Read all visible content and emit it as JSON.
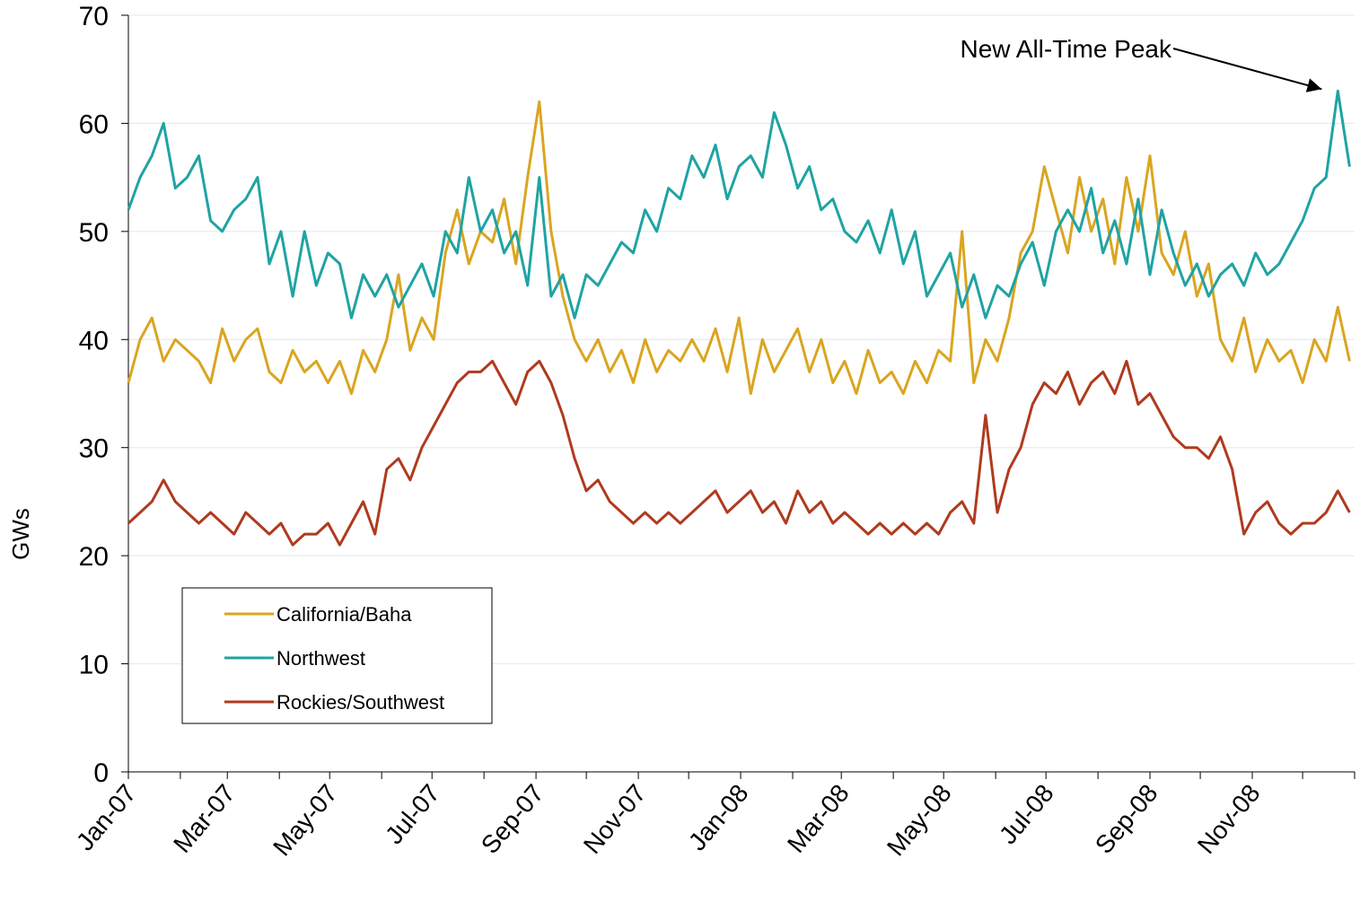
{
  "chart_data": {
    "type": "line",
    "ylabel": "GWs",
    "annotation": "New All-Time Peak",
    "x": [
      0,
      7,
      14,
      21,
      28,
      35,
      42,
      49,
      56,
      63,
      70,
      77,
      84,
      91,
      98,
      105,
      112,
      119,
      126,
      133,
      140,
      147,
      154,
      161,
      168,
      175,
      182,
      189,
      196,
      203,
      210,
      217,
      224,
      231,
      238,
      245,
      252,
      259,
      266,
      273,
      280,
      287,
      294,
      301,
      308,
      315,
      322,
      329,
      336,
      343,
      350,
      357,
      364,
      371,
      378,
      385,
      392,
      399,
      406,
      413,
      420,
      427,
      434,
      441,
      448,
      455,
      462,
      469,
      476,
      483,
      490,
      497,
      504,
      511,
      518,
      525,
      532,
      539,
      546,
      553,
      560,
      567,
      574,
      581,
      588,
      595,
      602,
      609,
      616,
      623,
      630,
      637,
      644,
      651,
      658,
      665,
      672,
      679,
      686,
      693,
      700,
      707,
      714,
      721,
      728
    ],
    "series": [
      {
        "name": "California/Baha",
        "color": "#DAA520",
        "values": [
          36,
          40,
          42,
          38,
          40,
          39,
          38,
          36,
          41,
          38,
          40,
          41,
          37,
          36,
          39,
          37,
          38,
          36,
          38,
          35,
          39,
          37,
          40,
          46,
          39,
          42,
          40,
          48,
          52,
          47,
          50,
          49,
          53,
          47,
          55,
          62,
          50,
          44,
          40,
          38,
          40,
          37,
          39,
          36,
          40,
          37,
          39,
          38,
          40,
          38,
          41,
          37,
          42,
          35,
          40,
          37,
          39,
          41,
          37,
          40,
          36,
          38,
          35,
          39,
          36,
          37,
          35,
          38,
          36,
          39,
          38,
          50,
          36,
          40,
          38,
          42,
          48,
          50,
          56,
          52,
          48,
          55,
          50,
          53,
          47,
          55,
          50,
          57,
          48,
          46,
          50,
          44,
          47,
          40,
          38,
          42,
          37,
          40,
          38,
          39,
          36,
          40,
          38,
          43,
          38
        ]
      },
      {
        "name": "Northwest",
        "color": "#20A3A3",
        "values": [
          52,
          55,
          57,
          60,
          54,
          55,
          57,
          51,
          50,
          52,
          53,
          55,
          47,
          50,
          44,
          50,
          45,
          48,
          47,
          42,
          46,
          44,
          46,
          43,
          45,
          47,
          44,
          50,
          48,
          55,
          50,
          52,
          48,
          50,
          45,
          55,
          44,
          46,
          42,
          46,
          45,
          47,
          49,
          48,
          52,
          50,
          54,
          53,
          57,
          55,
          58,
          53,
          56,
          57,
          55,
          61,
          58,
          54,
          56,
          52,
          53,
          50,
          49,
          51,
          48,
          52,
          47,
          50,
          44,
          46,
          48,
          43,
          46,
          42,
          45,
          44,
          47,
          49,
          45,
          50,
          52,
          50,
          54,
          48,
          51,
          47,
          53,
          46,
          52,
          48,
          45,
          47,
          44,
          46,
          47,
          45,
          48,
          46,
          47,
          49,
          51,
          54,
          55,
          63,
          56
        ]
      },
      {
        "name": "Rockies/Southwest",
        "color": "#B03A1E",
        "values": [
          23,
          24,
          25,
          27,
          25,
          24,
          23,
          24,
          23,
          22,
          24,
          23,
          22,
          23,
          21,
          22,
          22,
          23,
          21,
          23,
          25,
          22,
          28,
          29,
          27,
          30,
          32,
          34,
          36,
          37,
          37,
          38,
          36,
          34,
          37,
          38,
          36,
          33,
          29,
          26,
          27,
          25,
          24,
          23,
          24,
          23,
          24,
          23,
          24,
          25,
          26,
          24,
          25,
          26,
          24,
          25,
          23,
          26,
          24,
          25,
          23,
          24,
          23,
          22,
          23,
          22,
          23,
          22,
          23,
          22,
          24,
          25,
          23,
          33,
          24,
          28,
          30,
          34,
          36,
          35,
          37,
          34,
          36,
          37,
          35,
          38,
          34,
          35,
          33,
          31,
          30,
          30,
          29,
          31,
          28,
          22,
          24,
          25,
          23,
          22,
          23,
          23,
          24,
          26,
          24
        ]
      }
    ],
    "xlim": [
      0,
      731
    ],
    "xticks": [
      {
        "value": 0,
        "label": "Jan-07"
      },
      {
        "value": 59,
        "label": "Mar-07"
      },
      {
        "value": 120,
        "label": "May-07"
      },
      {
        "value": 181,
        "label": "Jul-07"
      },
      {
        "value": 243,
        "label": "Sep-07"
      },
      {
        "value": 304,
        "label": "Nov-07"
      },
      {
        "value": 365,
        "label": "Jan-08"
      },
      {
        "value": 425,
        "label": "Mar-08"
      },
      {
        "value": 486,
        "label": "May-08"
      },
      {
        "value": 547,
        "label": "Jul-08"
      },
      {
        "value": 609,
        "label": "Sep-08"
      },
      {
        "value": 670,
        "label": "Nov-08"
      }
    ],
    "xminorticks": [
      31,
      90,
      151,
      212,
      273,
      334,
      396,
      456,
      517,
      578,
      639,
      700,
      731
    ],
    "ylim": [
      0,
      70
    ],
    "yticks": [
      0,
      10,
      20,
      30,
      40,
      50,
      60,
      70
    ],
    "grid": true,
    "legend": "lower left"
  }
}
